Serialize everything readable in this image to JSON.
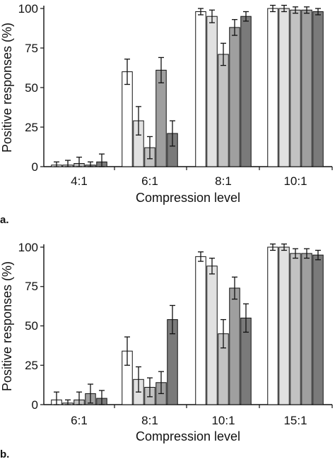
{
  "colors": {
    "series": [
      "#ffffff",
      "#e1e1e1",
      "#c2c2c2",
      "#9f9f9f",
      "#7a7a7a"
    ],
    "stroke": "#111111"
  },
  "chart_data": [
    {
      "panel_label": "a.",
      "type": "bar",
      "xlabel": "Compression level",
      "ylabel": "Positive responses (%)",
      "ylim": [
        0,
        100
      ],
      "yticks": [
        0,
        25,
        50,
        75,
        100
      ],
      "categories": [
        "4:1",
        "6:1",
        "8:1",
        "10:1"
      ],
      "grid": false,
      "series": [
        {
          "values": [
            1,
            60,
            98,
            100
          ],
          "errors": [
            2,
            8,
            2,
            2
          ]
        },
        {
          "values": [
            1,
            29,
            95,
            100
          ],
          "errors": [
            3,
            9,
            4,
            2
          ]
        },
        {
          "values": [
            2,
            12,
            71,
            99
          ],
          "errors": [
            4,
            7,
            7,
            2
          ]
        },
        {
          "values": [
            1,
            61,
            88,
            99
          ],
          "errors": [
            2,
            8,
            5,
            2
          ]
        },
        {
          "values": [
            3,
            21,
            95,
            98
          ],
          "errors": [
            5,
            8,
            3,
            2
          ]
        }
      ]
    },
    {
      "panel_label": "b.",
      "type": "bar",
      "xlabel": "Compression level",
      "ylabel": "Positive responses (%)",
      "ylim": [
        0,
        100
      ],
      "yticks": [
        0,
        25,
        50,
        75,
        100
      ],
      "categories": [
        "6:1",
        "8:1",
        "10:1",
        "15:1"
      ],
      "grid": false,
      "series": [
        {
          "values": [
            3,
            34,
            94,
            100
          ],
          "errors": [
            5,
            9,
            3,
            2
          ]
        },
        {
          "values": [
            1,
            16,
            88,
            100
          ],
          "errors": [
            2,
            8,
            5,
            2
          ]
        },
        {
          "values": [
            3,
            11,
            45,
            96
          ],
          "errors": [
            5,
            6,
            9,
            3
          ]
        },
        {
          "values": [
            7,
            14,
            74,
            96
          ],
          "errors": [
            6,
            7,
            7,
            3
          ]
        },
        {
          "values": [
            4,
            54,
            55,
            95
          ],
          "errors": [
            5,
            9,
            9,
            3
          ]
        }
      ]
    }
  ]
}
